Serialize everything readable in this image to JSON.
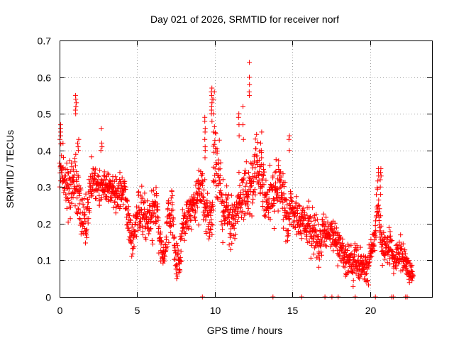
{
  "chart_data": {
    "type": "scatter",
    "title": "Day 021 of 2026, SRMTID for receiver norf",
    "xlabel": "GPS time / hours",
    "ylabel": "SRMTID / TECUs",
    "xlim": [
      0,
      24
    ],
    "ylim": [
      0,
      0.7
    ],
    "xticks": [
      0,
      5,
      10,
      15,
      20
    ],
    "yticks": [
      0,
      0.1,
      0.2,
      0.3,
      0.4,
      0.5,
      0.6,
      0.7
    ],
    "xtick_labels": [
      "0",
      "5",
      "10",
      "15",
      "20"
    ],
    "ytick_labels": [
      "0",
      "0.1",
      "0.2",
      "0.3",
      "0.4",
      "0.5",
      "0.6",
      "0.7"
    ],
    "grid": true,
    "marker": "+",
    "color": "#ff0000",
    "series": [
      {
        "name": "SRMTID",
        "profile_hours": [
          0.0,
          0.25,
          0.5,
          0.75,
          1.0,
          1.25,
          1.5,
          1.75,
          2.0,
          2.25,
          2.5,
          2.75,
          3.0,
          3.25,
          3.5,
          3.75,
          4.0,
          4.25,
          4.5,
          4.75,
          5.0,
          5.25,
          5.5,
          5.75,
          6.0,
          6.25,
          6.5,
          6.75,
          7.0,
          7.25,
          7.5,
          7.75,
          8.0,
          8.25,
          8.5,
          8.75,
          9.0,
          9.25,
          9.5,
          9.75,
          10.0,
          10.25,
          10.5,
          10.75,
          11.0,
          11.25,
          11.5,
          11.75,
          12.0,
          12.25,
          12.5,
          12.75,
          13.0,
          13.25,
          13.5,
          13.75,
          14.0,
          14.25,
          14.5,
          14.75,
          15.0,
          15.25,
          15.5,
          15.75,
          16.0,
          16.25,
          16.5,
          16.75,
          17.0,
          17.25,
          17.5,
          17.75,
          18.0,
          18.25,
          18.5,
          18.75,
          19.0,
          19.25,
          19.5,
          19.75,
          20.0,
          20.25,
          20.5,
          20.75,
          21.0,
          21.25,
          21.5,
          21.75,
          22.0,
          22.25,
          22.5,
          22.75
        ],
        "profile_mean": [
          0.36,
          0.33,
          0.3,
          0.28,
          0.34,
          0.3,
          0.22,
          0.2,
          0.3,
          0.31,
          0.3,
          0.3,
          0.29,
          0.3,
          0.29,
          0.28,
          0.3,
          0.29,
          0.18,
          0.17,
          0.22,
          0.23,
          0.22,
          0.2,
          0.22,
          0.28,
          0.14,
          0.1,
          0.2,
          0.22,
          0.12,
          0.1,
          0.22,
          0.23,
          0.25,
          0.26,
          0.28,
          0.28,
          0.24,
          0.2,
          0.37,
          0.3,
          0.24,
          0.26,
          0.22,
          0.2,
          0.24,
          0.26,
          0.3,
          0.28,
          0.32,
          0.35,
          0.3,
          0.27,
          0.26,
          0.28,
          0.3,
          0.31,
          0.25,
          0.2,
          0.24,
          0.24,
          0.2,
          0.19,
          0.18,
          0.2,
          0.18,
          0.15,
          0.18,
          0.18,
          0.17,
          0.15,
          0.14,
          0.13,
          0.1,
          0.1,
          0.09,
          0.08,
          0.08,
          0.07,
          0.1,
          0.15,
          0.26,
          0.13,
          0.15,
          0.14,
          0.1,
          0.1,
          0.12,
          0.1,
          0.07,
          0.06
        ],
        "profile_spread": [
          0.07,
          0.06,
          0.07,
          0.07,
          0.08,
          0.07,
          0.06,
          0.06,
          0.05,
          0.05,
          0.05,
          0.04,
          0.04,
          0.04,
          0.04,
          0.04,
          0.04,
          0.04,
          0.05,
          0.05,
          0.05,
          0.05,
          0.05,
          0.05,
          0.05,
          0.05,
          0.05,
          0.03,
          0.05,
          0.05,
          0.04,
          0.04,
          0.04,
          0.04,
          0.04,
          0.04,
          0.05,
          0.05,
          0.05,
          0.05,
          0.1,
          0.07,
          0.06,
          0.06,
          0.06,
          0.06,
          0.06,
          0.06,
          0.07,
          0.07,
          0.08,
          0.08,
          0.07,
          0.06,
          0.06,
          0.06,
          0.06,
          0.06,
          0.06,
          0.06,
          0.05,
          0.05,
          0.05,
          0.05,
          0.05,
          0.05,
          0.05,
          0.05,
          0.04,
          0.04,
          0.04,
          0.04,
          0.04,
          0.04,
          0.04,
          0.04,
          0.04,
          0.04,
          0.04,
          0.04,
          0.04,
          0.05,
          0.05,
          0.04,
          0.04,
          0.04,
          0.04,
          0.04,
          0.04,
          0.03,
          0.03,
          0.02
        ],
        "spikes": [
          {
            "x": 0.05,
            "y": [
              0.47,
              0.46,
              0.45,
              0.44,
              0.43
            ]
          },
          {
            "x": 1.05,
            "y": [
              0.55,
              0.54,
              0.53,
              0.52,
              0.51,
              0.5
            ]
          },
          {
            "x": 1.2,
            "y": [
              0.43,
              0.42,
              0.41,
              0.4
            ]
          },
          {
            "x": 2.7,
            "y": [
              0.46,
              0.42,
              0.41,
              0.4
            ]
          },
          {
            "x": 9.35,
            "y": [
              0.49,
              0.48,
              0.46,
              0.45,
              0.43,
              0.41,
              0.4,
              0.38
            ]
          },
          {
            "x": 9.8,
            "y": [
              0.57,
              0.56,
              0.55,
              0.54,
              0.53,
              0.52,
              0.51,
              0.5,
              0.48
            ]
          },
          {
            "x": 9.95,
            "y": [
              0.56,
              0.54,
              0.5,
              0.45
            ]
          },
          {
            "x": 11.55,
            "y": [
              0.5,
              0.49,
              0.47,
              0.44
            ]
          },
          {
            "x": 11.85,
            "y": [
              0.52,
              0.47,
              0.43
            ]
          },
          {
            "x": 12.25,
            "y": [
              0.64,
              0.6,
              0.58,
              0.56,
              0.55
            ]
          },
          {
            "x": 13.0,
            "y": [
              0.45,
              0.42,
              0.4,
              0.38
            ]
          },
          {
            "x": 14.8,
            "y": [
              0.44,
              0.43,
              0.4
            ]
          },
          {
            "x": 20.7,
            "y": [
              0.35,
              0.34,
              0.33,
              0.32,
              0.3,
              0.28
            ]
          },
          {
            "x": 20.55,
            "y": [
              0.35,
              0.34,
              0.33
            ]
          }
        ],
        "zeros": [
          9.2,
          13.75,
          15.6,
          17.1,
          17.55,
          17.95,
          19.05,
          20.35,
          21.4,
          21.5,
          22.3,
          22.4
        ]
      }
    ]
  }
}
